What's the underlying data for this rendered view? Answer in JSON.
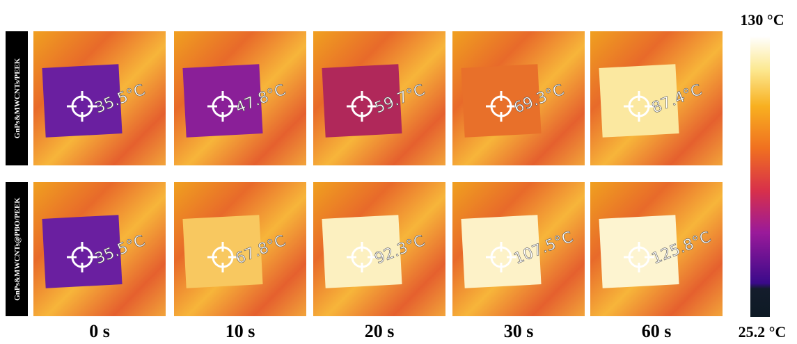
{
  "rows": [
    {
      "label": "GnPs&MWCNTs/PEEK",
      "panels": [
        "35.5°C",
        "47.8°C",
        "59.7°C",
        "69.3°C",
        "87.4°C"
      ]
    },
    {
      "label": "GnPs&MWCNTs@PBO/PEEK",
      "panels": [
        "35.5°C",
        "67.8°C",
        "92.3°C",
        "107.5°C",
        "125.8°C"
      ]
    }
  ],
  "times": [
    "0 s",
    "10 s",
    "20 s",
    "30 s",
    "60 s"
  ],
  "colorbar": {
    "max_label": "130 °C",
    "min_label": "25.2 °C"
  }
}
